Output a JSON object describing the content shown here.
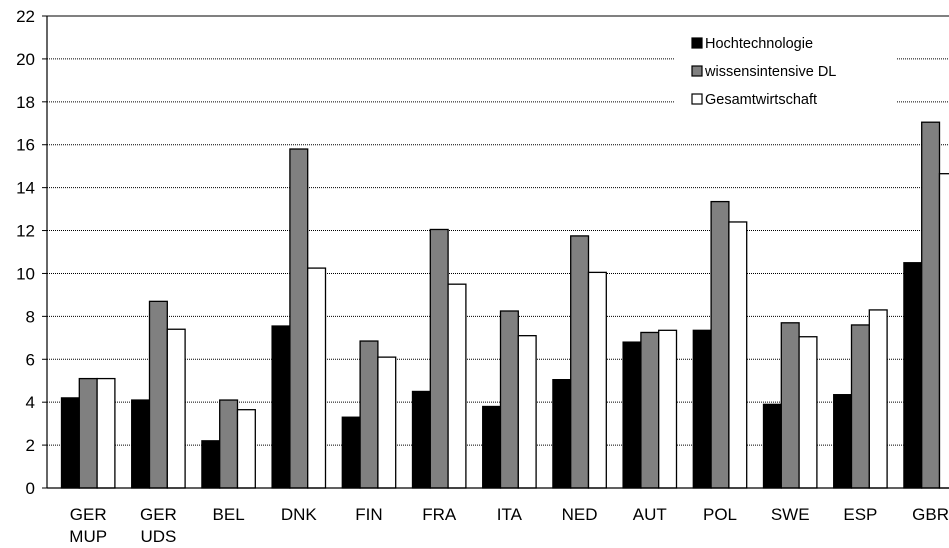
{
  "chart_data": {
    "type": "bar",
    "title": "",
    "xlabel": "",
    "ylabel": "",
    "ylim": [
      0,
      22
    ],
    "ytick_step": 2,
    "grid": true,
    "legend_position": "top-right",
    "categories": [
      [
        "GER",
        "MUP"
      ],
      [
        "GER",
        "UDS"
      ],
      [
        "BEL"
      ],
      [
        "DNK"
      ],
      [
        "FIN"
      ],
      [
        "FRA"
      ],
      [
        "ITA"
      ],
      [
        "NED"
      ],
      [
        "AUT"
      ],
      [
        "POL"
      ],
      [
        "SWE"
      ],
      [
        "ESP"
      ],
      [
        "GBR"
      ]
    ],
    "series": [
      {
        "name": "Hochtechnologie",
        "color": "#000000",
        "values": [
          4.2,
          4.1,
          2.2,
          7.55,
          3.3,
          4.5,
          3.8,
          5.05,
          6.8,
          7.35,
          3.9,
          4.35,
          10.5
        ]
      },
      {
        "name": "wissensintensive DL",
        "color": "#808080",
        "values": [
          5.1,
          8.7,
          4.1,
          15.8,
          6.85,
          12.05,
          8.25,
          11.75,
          7.25,
          13.35,
          7.7,
          7.6,
          17.05
        ]
      },
      {
        "name": "Gesamtwirtschaft",
        "color": "#ffffff",
        "values": [
          5.1,
          7.4,
          3.65,
          10.25,
          6.1,
          9.5,
          7.1,
          10.05,
          7.35,
          12.4,
          7.05,
          8.3,
          14.65
        ]
      }
    ]
  }
}
